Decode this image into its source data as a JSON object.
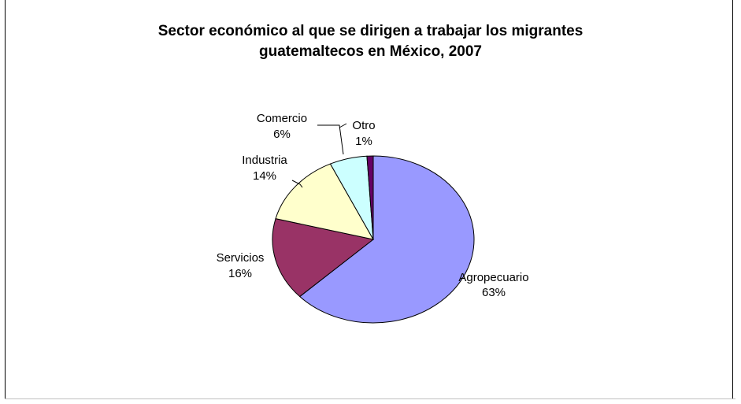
{
  "chart_data": {
    "type": "pie",
    "title_lines": [
      "Sector económico al que se dirigen a trabajar los migrantes",
      "guatemaltecos en México, 2007"
    ],
    "slices": [
      {
        "label": "Agropecuario",
        "value": 63,
        "value_text": "63%",
        "color": "#9999ff"
      },
      {
        "label": "Servicios",
        "value": 16,
        "value_text": "16%",
        "color": "#993366"
      },
      {
        "label": "Industria",
        "value": 14,
        "value_text": "14%",
        "color": "#ffffcc"
      },
      {
        "label": "Comercio",
        "value": 6,
        "value_text": "6%",
        "color": "#ccffff"
      },
      {
        "label": "Otro",
        "value": 1,
        "value_text": "1%",
        "color": "#660066"
      }
    ]
  }
}
